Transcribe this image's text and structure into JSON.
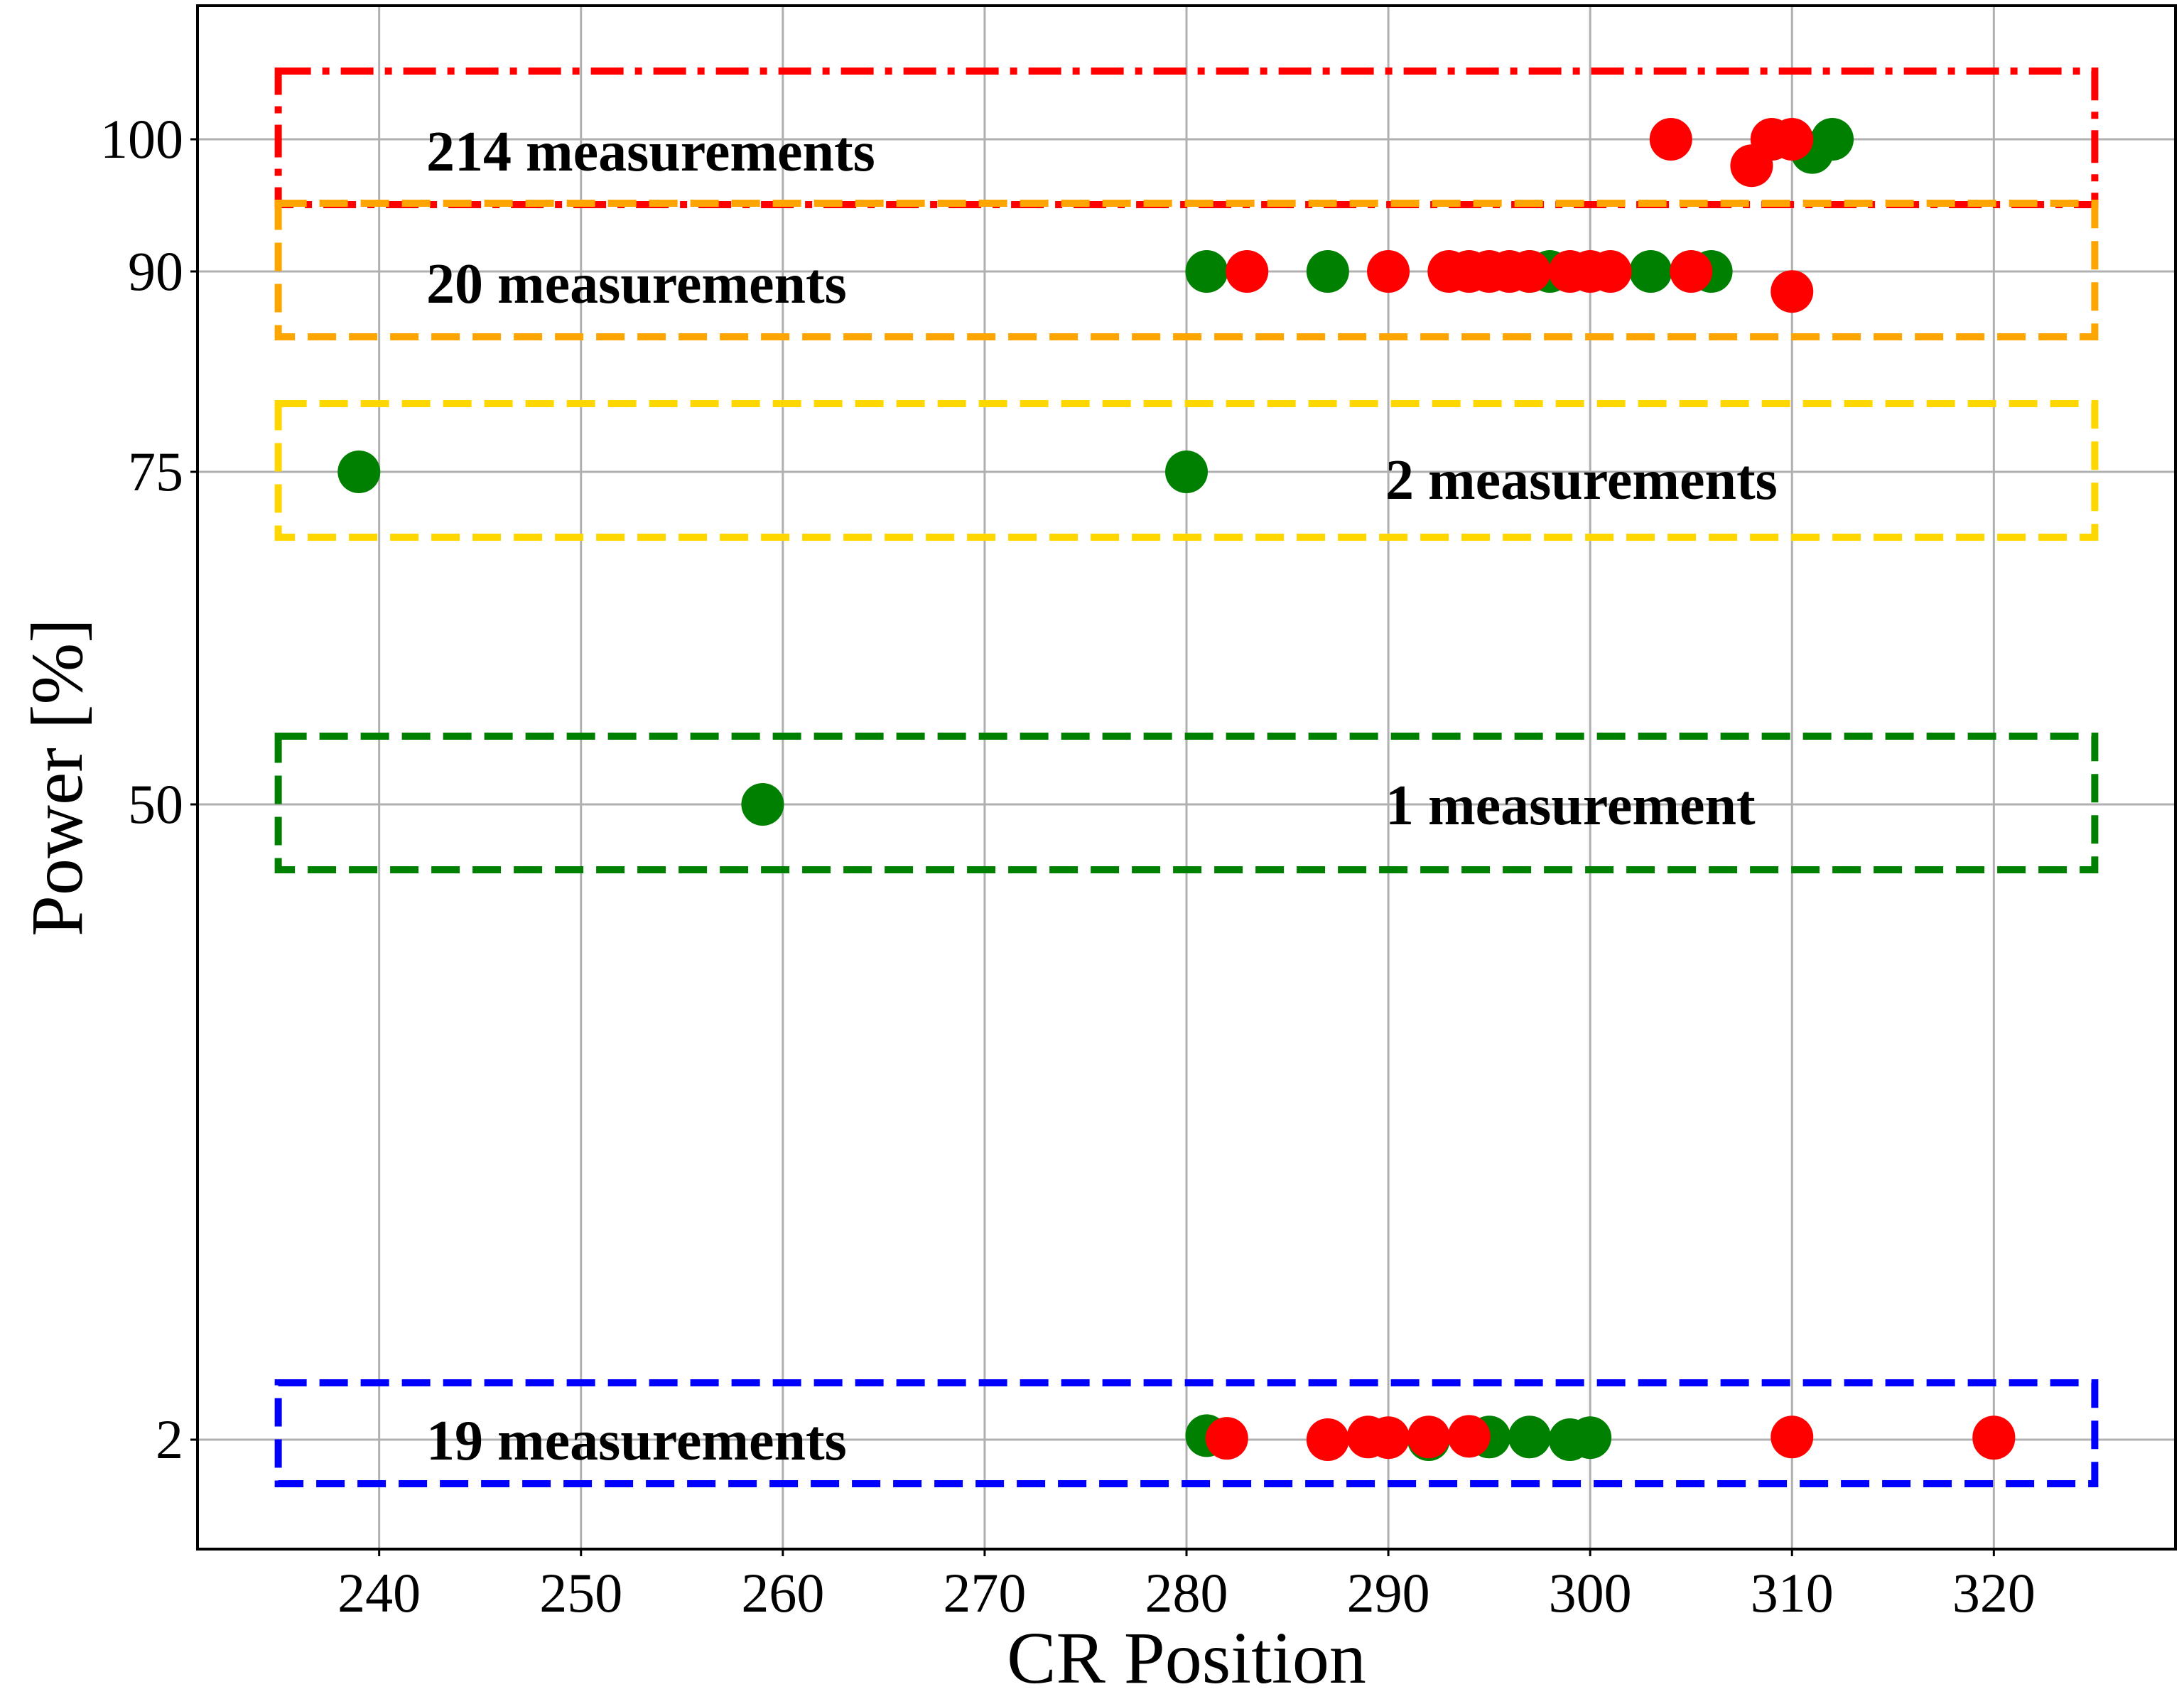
{
  "chart_data": {
    "type": "scatter",
    "title": "",
    "xlabel": "CR Position",
    "ylabel": "Power [%]",
    "xlim": [
      231,
      329
    ],
    "xticks": [
      240,
      250,
      260,
      270,
      280,
      290,
      300,
      310,
      320
    ],
    "y_axis_scale": "categorical-level spacing",
    "yticks": [
      2,
      50,
      75,
      90,
      100
    ],
    "grid": true,
    "legend": "none",
    "colors": {
      "green": "#008000",
      "red": "#ff0000"
    },
    "groups": [
      {
        "name": "214 measurements",
        "power": 100,
        "box_color": "#ff0000",
        "box_style": "dash-dot",
        "x_range": [
          235,
          325
        ]
      },
      {
        "name": "20 measurements",
        "power": 90,
        "box_color": "#ffa500",
        "box_style": "dashed",
        "x_range": [
          235,
          325
        ]
      },
      {
        "name": "2 measurements",
        "power": 75,
        "box_color": "#ffd700",
        "box_style": "dashed",
        "x_range": [
          235,
          325
        ]
      },
      {
        "name": "1 measurement",
        "power": 50,
        "box_color": "#008000",
        "box_style": "dashed",
        "x_range": [
          235,
          325
        ]
      },
      {
        "name": "19 measurements",
        "power": 2,
        "box_color": "#0000ff",
        "box_style": "dashed",
        "x_range": [
          235,
          325
        ]
      }
    ],
    "series": [
      {
        "color": "green",
        "points": [
          {
            "x": 311,
            "y": 99
          },
          {
            "x": 312,
            "y": 100
          },
          {
            "x": 281,
            "y": 90
          },
          {
            "x": 287,
            "y": 90
          },
          {
            "x": 297,
            "y": 90
          },
          {
            "x": 298,
            "y": 90
          },
          {
            "x": 303,
            "y": 90
          },
          {
            "x": 306,
            "y": 90
          },
          {
            "x": 239,
            "y": 75
          },
          {
            "x": 280,
            "y": 75
          },
          {
            "x": 259,
            "y": 50
          },
          {
            "x": 281,
            "y": 2.3
          },
          {
            "x": 292,
            "y": 2.0
          },
          {
            "x": 295,
            "y": 2.2
          },
          {
            "x": 297,
            "y": 2.2
          },
          {
            "x": 299,
            "y": 2.0
          },
          {
            "x": 300,
            "y": 2.15
          }
        ]
      },
      {
        "color": "red",
        "points": [
          {
            "x": 304,
            "y": 100
          },
          {
            "x": 308,
            "y": 98
          },
          {
            "x": 309,
            "y": 100
          },
          {
            "x": 310,
            "y": 100
          },
          {
            "x": 283,
            "y": 90
          },
          {
            "x": 290,
            "y": 90
          },
          {
            "x": 293,
            "y": 90
          },
          {
            "x": 294,
            "y": 90
          },
          {
            "x": 295,
            "y": 90
          },
          {
            "x": 296,
            "y": 90
          },
          {
            "x": 297,
            "y": 90
          },
          {
            "x": 299,
            "y": 90
          },
          {
            "x": 300,
            "y": 90
          },
          {
            "x": 301,
            "y": 90
          },
          {
            "x": 305,
            "y": 90
          },
          {
            "x": 310,
            "y": 88.5
          },
          {
            "x": 282,
            "y": 2.1
          },
          {
            "x": 287,
            "y": 2.0
          },
          {
            "x": 289,
            "y": 2.2
          },
          {
            "x": 290,
            "y": 2.15
          },
          {
            "x": 292,
            "y": 2.2
          },
          {
            "x": 294,
            "y": 2.25
          },
          {
            "x": 310,
            "y": 2.2
          },
          {
            "x": 320,
            "y": 2.1
          },
          {
            "x": 320,
            "y": 2.2
          }
        ]
      }
    ]
  }
}
